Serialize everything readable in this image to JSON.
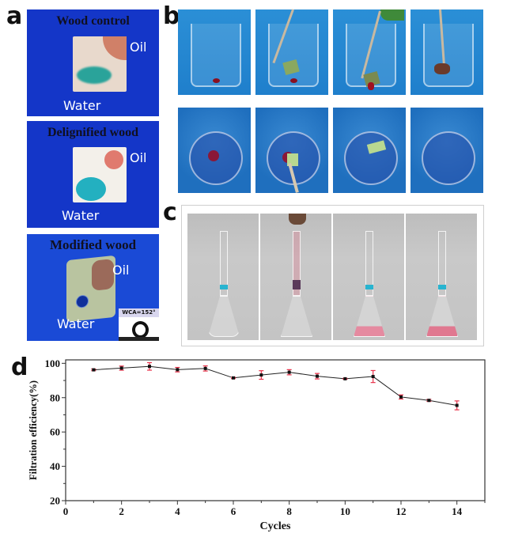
{
  "panels": {
    "a": {
      "letter": "a",
      "samples": [
        {
          "title": "Wood control",
          "oil": "Oil",
          "water": "Water"
        },
        {
          "title": "Delignified wood",
          "oil": "Oil",
          "water": "Water"
        },
        {
          "title": "Modified wood",
          "oil": "Oil",
          "water": "Water",
          "wca": "WCA=152°"
        }
      ]
    },
    "b": {
      "letter": "b"
    },
    "c": {
      "letter": "c"
    },
    "d": {
      "letter": "d"
    }
  },
  "colors": {
    "line": "#222222",
    "errorbar": "#e8324a",
    "marker": "#111111",
    "blue_bg": "#1436c8"
  },
  "chart_data": {
    "type": "line",
    "title": "",
    "xlabel": "Cycles",
    "ylabel": "Filtration efficiency(%)",
    "xlim": [
      0,
      15
    ],
    "ylim": [
      20,
      102
    ],
    "xticks": [
      "0",
      "2",
      "4",
      "6",
      "8",
      "10",
      "12",
      "14"
    ],
    "yticks": [
      "20",
      "40",
      "60",
      "80",
      "100"
    ],
    "grid": false,
    "legend": "none",
    "series": [
      {
        "name": "Filtration efficiency",
        "x": [
          1,
          2,
          3,
          4,
          5,
          6,
          7,
          8,
          9,
          10,
          11,
          12,
          13,
          14
        ],
        "y": [
          96.2,
          97.2,
          98.2,
          96.3,
          97.0,
          91.5,
          93.2,
          94.8,
          92.5,
          91.0,
          92.3,
          80.4,
          78.4,
          75.5
        ],
        "error": [
          0.5,
          1.2,
          2.2,
          1.3,
          1.5,
          0.4,
          2.5,
          1.5,
          1.6,
          0.3,
          3.5,
          1.2,
          0.6,
          2.6
        ]
      }
    ]
  }
}
